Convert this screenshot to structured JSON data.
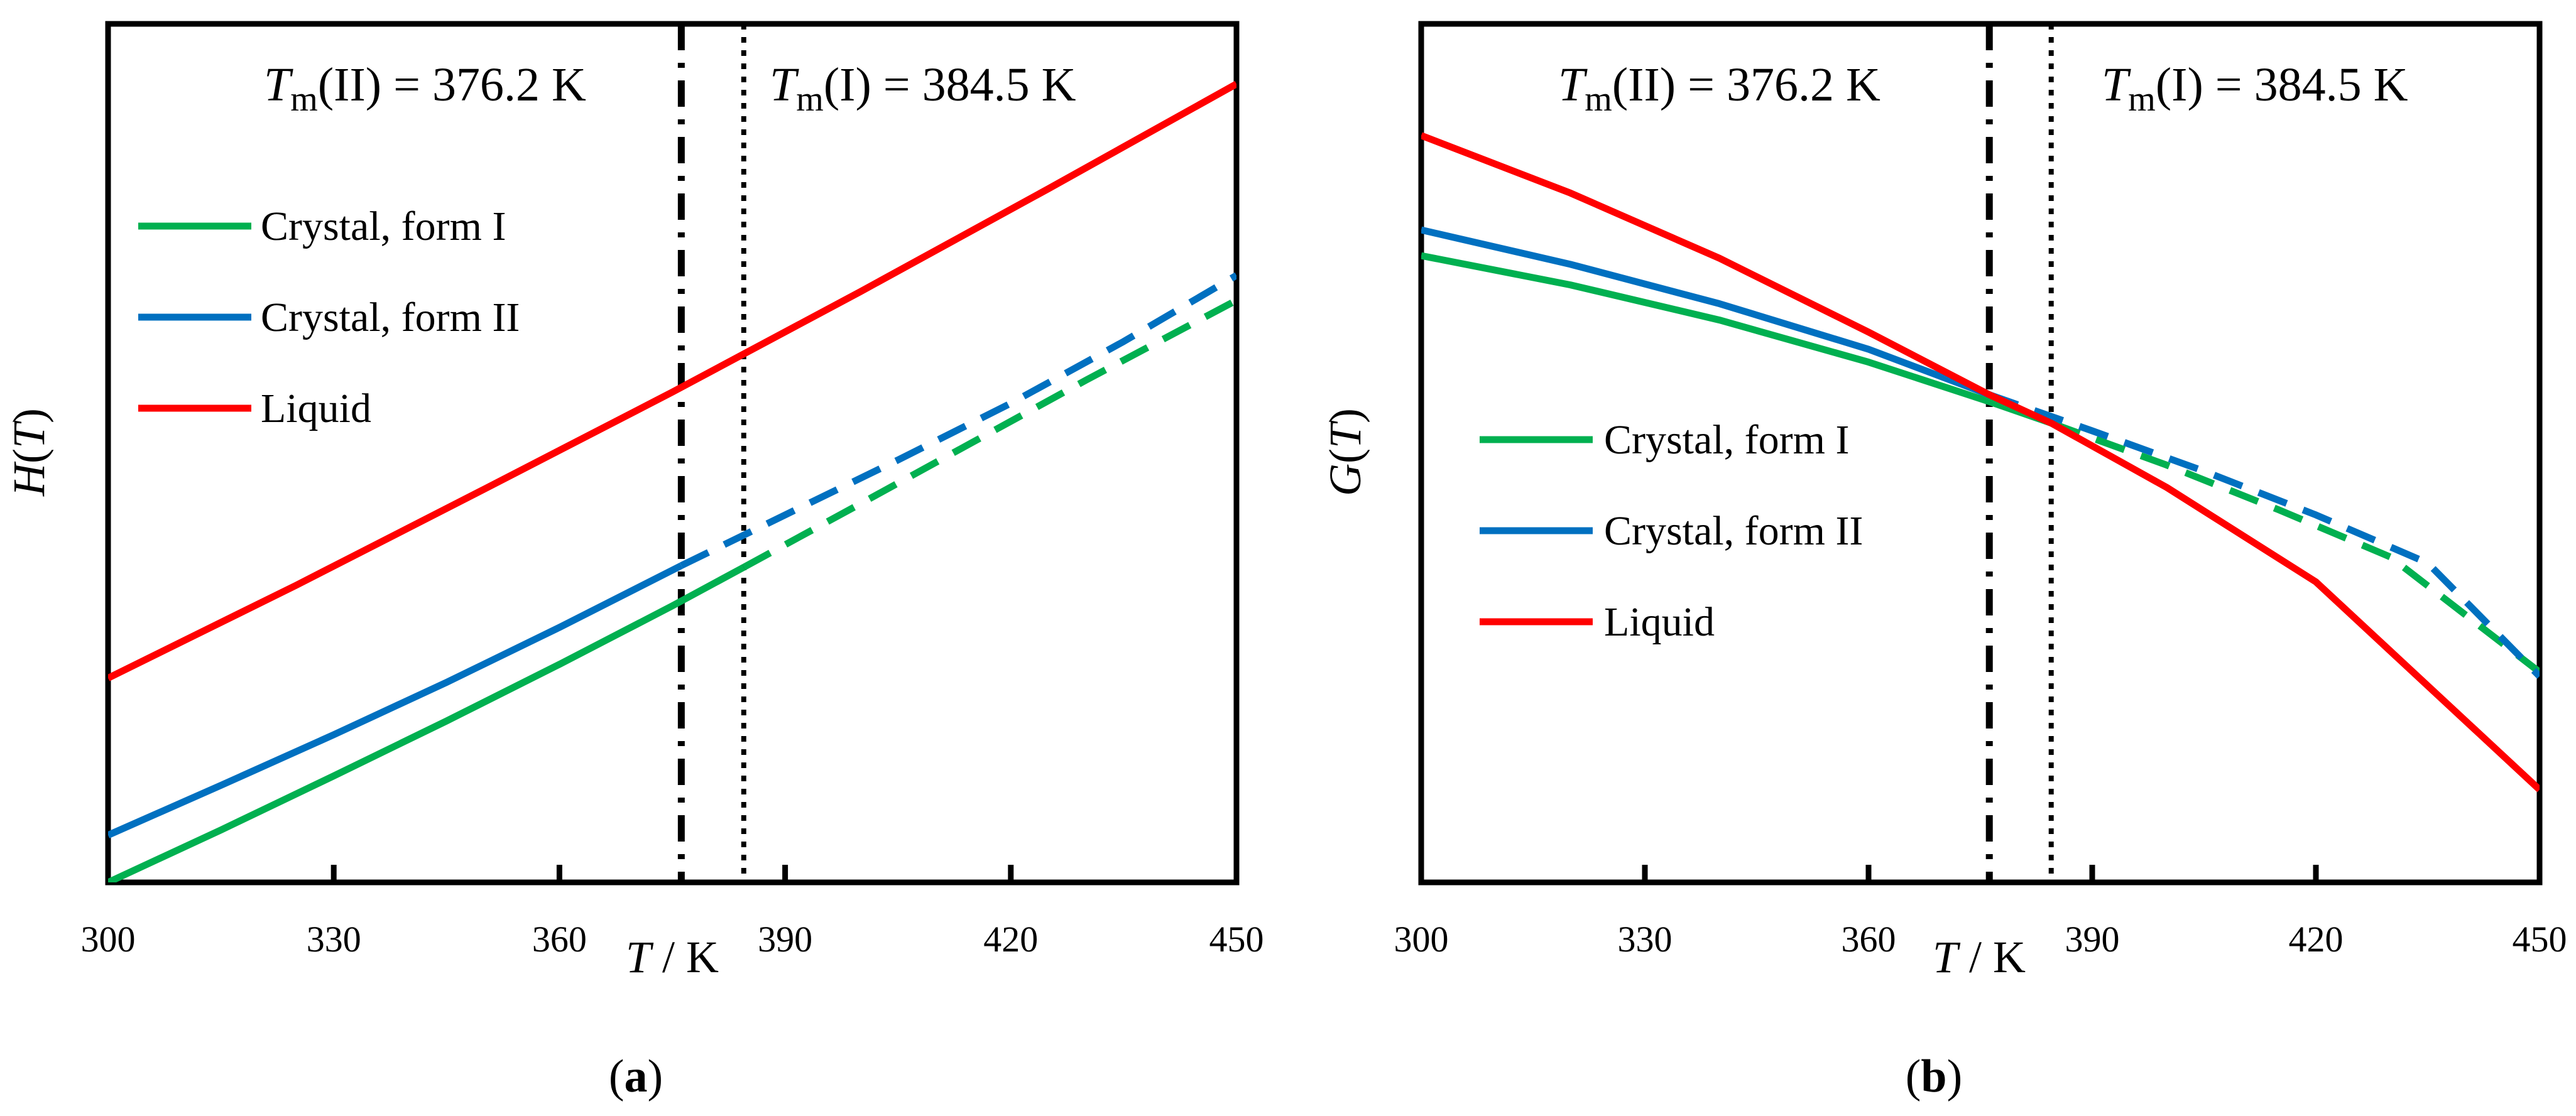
{
  "chart_data": [
    {
      "panel_label": "(a)",
      "panel_letter": "a",
      "type": "line",
      "ylabel": "H(T)",
      "ylabel_parts": {
        "symbol": "H",
        "open": "(",
        "var": "T",
        "close": ")"
      },
      "xlabel": "T / K",
      "xlabel_parts": {
        "var": "T",
        "unit": " / K"
      },
      "xlim": [
        300,
        450
      ],
      "ylim": [
        0,
        1
      ],
      "x_ticks": [
        300,
        330,
        360,
        390,
        420,
        450
      ],
      "annotations": [
        {
          "text": "Tm(II) = 376.2 K",
          "symbol": "T",
          "subscript": "m",
          "rest": "(II) = 376.2 K",
          "x": 376.2,
          "line_style": "dash-dot"
        },
        {
          "text": "Tm(I) = 384.5 K",
          "symbol": "T",
          "subscript": "m",
          "rest": "(I) = 384.5 K",
          "x": 384.5,
          "line_style": "dotted"
        }
      ],
      "legend_position": "upper-left",
      "series": [
        {
          "name": "Crystal, form I",
          "color": "#00B050",
          "solid": {
            "x": [
              300,
              315,
              330,
              345,
              360,
              375,
              384.5
            ],
            "y": [
              0.0,
              0.061,
              0.124,
              0.188,
              0.254,
              0.322,
              0.367
            ]
          },
          "dashed": {
            "x": [
              384.5,
              400,
              415,
              430,
              450
            ],
            "y": [
              0.367,
              0.441,
              0.513,
              0.585,
              0.678
            ]
          }
        },
        {
          "name": "Crystal, form II",
          "color": "#0070C0",
          "solid": {
            "x": [
              300,
              315,
              330,
              345,
              360,
              376.2
            ],
            "y": [
              0.055,
              0.113,
              0.172,
              0.233,
              0.297,
              0.369
            ]
          },
          "dashed": {
            "x": [
              376.2,
              390,
              405,
              420,
              435,
              450
            ],
            "y": [
              0.369,
              0.428,
              0.492,
              0.558,
              0.63,
              0.707
            ]
          }
        },
        {
          "name": "Liquid",
          "color": "#FF0000",
          "solid": {
            "x": [
              300,
              325,
              350,
              375,
              400,
              425,
              450
            ],
            "y": [
              0.238,
              0.346,
              0.458,
              0.571,
              0.688,
              0.808,
              0.93
            ]
          }
        }
      ]
    },
    {
      "panel_label": "(b)",
      "panel_letter": "b",
      "type": "line",
      "ylabel": "G(T)",
      "ylabel_parts": {
        "symbol": "G",
        "open": "(",
        "var": "T",
        "close": ")"
      },
      "xlabel": "T / K",
      "xlabel_parts": {
        "var": "T",
        "unit": " / K"
      },
      "xlim": [
        300,
        450
      ],
      "ylim": [
        0,
        1
      ],
      "x_ticks": [
        300,
        330,
        360,
        390,
        420,
        450
      ],
      "annotations": [
        {
          "text": "Tm(II) = 376.2 K",
          "symbol": "T",
          "subscript": "m",
          "rest": "(II) = 376.2 K",
          "x": 376.2,
          "line_style": "dash-dot"
        },
        {
          "text": "Tm(I) = 384.5 K",
          "symbol": "T",
          "subscript": "m",
          "rest": "(I) = 384.5 K",
          "x": 384.5,
          "line_style": "dotted"
        }
      ],
      "legend_position": "center-left",
      "series": [
        {
          "name": "Crystal, form I",
          "color": "#00B050",
          "solid": {
            "x": [
              300,
              320,
              340,
              360,
              376.2,
              384.5
            ],
            "y": [
              0.73,
              0.696,
              0.655,
              0.606,
              0.56,
              0.535
            ]
          },
          "dashed": {
            "x": [
              384.5,
              400,
              415,
              430,
              450
            ],
            "y": [
              0.535,
              0.486,
              0.434,
              0.379,
              0.245
            ]
          }
        },
        {
          "name": "Crystal, form II",
          "color": "#0070C0",
          "solid": {
            "x": [
              300,
              320,
              340,
              360,
              376.2
            ],
            "y": [
              0.76,
              0.72,
              0.674,
              0.621,
              0.568
            ]
          },
          "dashed": {
            "x": [
              376.2,
              390,
              405,
              420,
              435,
              450
            ],
            "y": [
              0.568,
              0.526,
              0.479,
              0.428,
              0.372,
              0.24
            ]
          }
        },
        {
          "name": "Liquid",
          "color": "#FF0000",
          "solid": {
            "x": [
              300,
              320,
              340,
              360,
              376.2,
              384.5,
              400,
              420,
              450
            ],
            "y": [
              0.87,
              0.803,
              0.727,
              0.641,
              0.568,
              0.535,
              0.46,
              0.35,
              0.108
            ]
          }
        }
      ]
    }
  ]
}
